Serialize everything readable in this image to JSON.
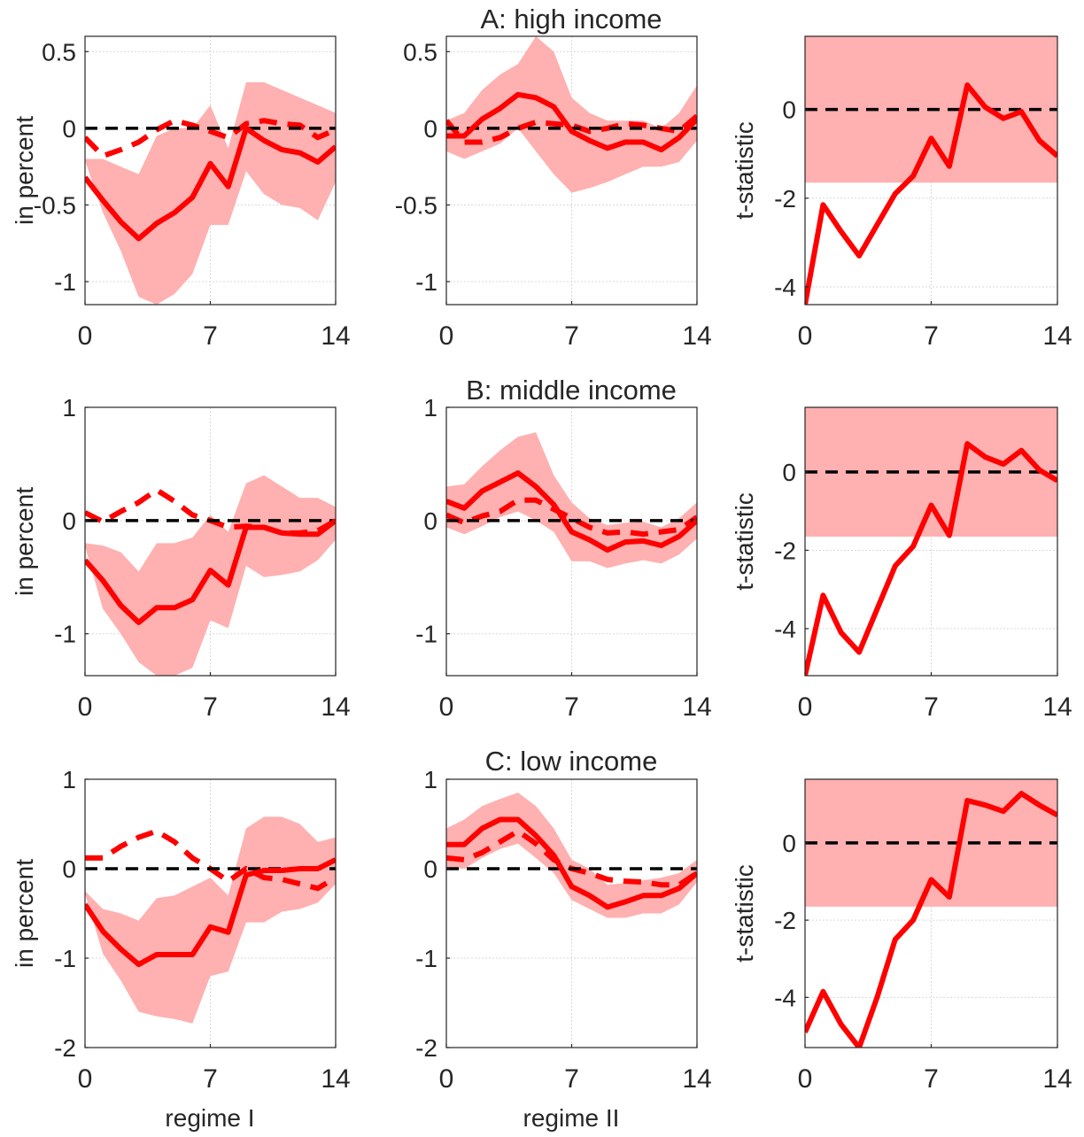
{
  "colors": {
    "line": "#ff0000",
    "band": "#ffb0b0",
    "zero_line": "#000000",
    "grid": "#d9d9d9",
    "axis": "#262626"
  },
  "labels": {
    "row_titles": [
      "A: high income",
      "B: middle income",
      "C: low income"
    ],
    "col_xlabels": [
      "regime I",
      "regime II",
      ""
    ],
    "ylabel_percent": "in percent",
    "ylabel_tstat": "t-statistic"
  },
  "chart_data": [
    {
      "type": "line",
      "title": "A: high income",
      "panel": "A, regime I",
      "ylabel": "in percent",
      "xlim": [
        0,
        14
      ],
      "ylim": [
        -1.15,
        0.6
      ],
      "xticks": [
        0,
        7,
        14
      ],
      "yticks": [
        -1,
        -0.5,
        0,
        0.5
      ],
      "ytick_labels": [
        "-1",
        "-0.5",
        "0",
        "0.5"
      ],
      "grid": true,
      "x": [
        0,
        1,
        2,
        3,
        4,
        5,
        6,
        7,
        8,
        9,
        10,
        11,
        12,
        13,
        14
      ],
      "series": [
        {
          "style": "solid",
          "values": [
            -0.32,
            -0.47,
            -0.61,
            -0.72,
            -0.62,
            -0.55,
            -0.45,
            -0.23,
            -0.38,
            0.0,
            -0.08,
            -0.14,
            -0.16,
            -0.22,
            -0.12
          ]
        },
        {
          "style": "dashed",
          "values": [
            -0.06,
            -0.18,
            -0.14,
            -0.09,
            -0.01,
            0.05,
            0.02,
            -0.02,
            -0.06,
            0.03,
            0.05,
            0.03,
            0.02,
            -0.06,
            -0.01
          ]
        },
        {
          "style": "band",
          "lower": [
            -0.21,
            -0.55,
            -0.8,
            -1.1,
            -1.15,
            -1.08,
            -0.95,
            -0.63,
            -0.63,
            -0.28,
            -0.43,
            -0.5,
            -0.52,
            -0.6,
            -0.35
          ],
          "upper": [
            -0.2,
            -0.2,
            -0.25,
            -0.3,
            -0.05,
            0.0,
            0.0,
            0.15,
            -0.13,
            0.3,
            0.3,
            0.25,
            0.2,
            0.15,
            0.1
          ]
        }
      ]
    },
    {
      "type": "line",
      "title": "",
      "panel": "A, regime II",
      "ylabel": "",
      "xlim": [
        0,
        14
      ],
      "ylim": [
        -1.15,
        0.6
      ],
      "xticks": [
        0,
        7,
        14
      ],
      "yticks": [
        -1,
        -0.5,
        0,
        0.5
      ],
      "ytick_labels": [
        "-1",
        "-0.5",
        "0",
        "0.5"
      ],
      "grid": true,
      "x": [
        0,
        1,
        2,
        3,
        4,
        5,
        6,
        7,
        8,
        9,
        10,
        11,
        12,
        13,
        14
      ],
      "series": [
        {
          "style": "solid",
          "values": [
            -0.05,
            -0.05,
            0.06,
            0.13,
            0.22,
            0.2,
            0.14,
            -0.02,
            -0.08,
            -0.13,
            -0.09,
            -0.09,
            -0.14,
            -0.06,
            0.06
          ]
        },
        {
          "style": "dashed",
          "values": [
            0.05,
            -0.09,
            -0.09,
            -0.06,
            0.0,
            0.04,
            0.03,
            0.02,
            -0.02,
            0.0,
            0.03,
            0.02,
            0.0,
            -0.02,
            0.08
          ]
        },
        {
          "style": "band",
          "lower": [
            -0.15,
            -0.2,
            -0.15,
            -0.1,
            0.0,
            -0.15,
            -0.3,
            -0.42,
            -0.39,
            -0.35,
            -0.3,
            -0.25,
            -0.25,
            -0.22,
            -0.08
          ],
          "upper": [
            0.05,
            0.1,
            0.25,
            0.35,
            0.42,
            0.6,
            0.5,
            0.2,
            0.1,
            0.05,
            0.05,
            0.05,
            0.0,
            0.1,
            0.28
          ]
        }
      ]
    },
    {
      "type": "line",
      "title": "",
      "panel": "A, t-statistic",
      "ylabel": "t-statistic",
      "xlim": [
        0,
        14
      ],
      "ylim": [
        -4.4,
        1.65
      ],
      "xticks": [
        0,
        7,
        14
      ],
      "yticks": [
        -4,
        -2,
        0
      ],
      "ytick_labels": [
        "-4",
        "-2",
        "0"
      ],
      "grid": true,
      "x": [
        0,
        1,
        2,
        3,
        4,
        5,
        6,
        7,
        8,
        9,
        10,
        11,
        12,
        13,
        14
      ],
      "series": [
        {
          "style": "solid",
          "values": [
            -4.4,
            -2.15,
            -2.75,
            -3.3,
            -2.6,
            -1.9,
            -1.5,
            -0.65,
            -1.28,
            0.55,
            0.05,
            -0.2,
            -0.05,
            -0.7,
            -1.05
          ]
        },
        {
          "style": "band",
          "lower": [
            -1.65,
            -1.65,
            -1.65,
            -1.65,
            -1.65,
            -1.65,
            -1.65,
            -1.65,
            -1.65,
            -1.65,
            -1.65,
            -1.65,
            -1.65,
            -1.65,
            -1.65
          ],
          "upper": [
            1.65,
            1.65,
            1.65,
            1.65,
            1.65,
            1.65,
            1.65,
            1.65,
            1.65,
            1.65,
            1.65,
            1.65,
            1.65,
            1.65,
            1.65
          ]
        }
      ]
    },
    {
      "type": "line",
      "title": "B: middle income",
      "panel": "B, regime I",
      "ylabel": "in percent",
      "xlim": [
        0,
        14
      ],
      "ylim": [
        -1.37,
        1.0
      ],
      "xticks": [
        0,
        7,
        14
      ],
      "yticks": [
        -1,
        0,
        1
      ],
      "ytick_labels": [
        "-1",
        "0",
        "1"
      ],
      "grid": true,
      "x": [
        0,
        1,
        2,
        3,
        4,
        5,
        6,
        7,
        8,
        9,
        10,
        11,
        12,
        13,
        14
      ],
      "series": [
        {
          "style": "solid",
          "values": [
            -0.35,
            -0.53,
            -0.75,
            -0.9,
            -0.77,
            -0.77,
            -0.7,
            -0.44,
            -0.57,
            -0.06,
            -0.06,
            -0.11,
            -0.12,
            -0.12,
            0.0
          ]
        },
        {
          "style": "dashed",
          "values": [
            0.07,
            -0.01,
            0.08,
            0.16,
            0.27,
            0.17,
            0.05,
            0.0,
            -0.06,
            -0.05,
            -0.06,
            -0.11,
            -0.11,
            -0.09,
            0.0
          ]
        },
        {
          "style": "band",
          "lower": [
            -0.23,
            -0.78,
            -1.0,
            -1.25,
            -1.37,
            -1.37,
            -1.3,
            -0.88,
            -0.95,
            -0.4,
            -0.5,
            -0.48,
            -0.45,
            -0.35,
            -0.17
          ],
          "upper": [
            -0.2,
            -0.22,
            -0.28,
            -0.45,
            -0.2,
            -0.2,
            -0.15,
            0.05,
            -0.1,
            0.33,
            0.4,
            0.3,
            0.2,
            0.2,
            0.12
          ]
        }
      ]
    },
    {
      "type": "line",
      "title": "",
      "panel": "B, regime II",
      "ylabel": "",
      "xlim": [
        0,
        14
      ],
      "ylim": [
        -1.37,
        1.0
      ],
      "xticks": [
        0,
        7,
        14
      ],
      "yticks": [
        -1,
        0,
        1
      ],
      "ytick_labels": [
        "-1",
        "0",
        "1"
      ],
      "grid": true,
      "x": [
        0,
        1,
        2,
        3,
        4,
        5,
        6,
        7,
        8,
        9,
        10,
        11,
        12,
        13,
        14
      ],
      "series": [
        {
          "style": "solid",
          "values": [
            0.17,
            0.11,
            0.26,
            0.34,
            0.42,
            0.3,
            0.14,
            -0.1,
            -0.17,
            -0.26,
            -0.19,
            -0.18,
            -0.22,
            -0.14,
            0.0
          ]
        },
        {
          "style": "dashed",
          "values": [
            0.05,
            -0.02,
            0.04,
            0.08,
            0.18,
            0.18,
            0.1,
            0.02,
            -0.06,
            -0.11,
            -0.1,
            -0.12,
            -0.1,
            -0.08,
            0.03
          ]
        },
        {
          "style": "band",
          "lower": [
            -0.06,
            -0.12,
            -0.05,
            0.03,
            0.08,
            0.0,
            -0.1,
            -0.36,
            -0.36,
            -0.42,
            -0.38,
            -0.35,
            -0.38,
            -0.3,
            -0.16
          ],
          "upper": [
            0.3,
            0.32,
            0.48,
            0.62,
            0.74,
            0.78,
            0.4,
            0.16,
            0.02,
            -0.04,
            -0.02,
            -0.01,
            -0.06,
            0.02,
            0.16
          ]
        }
      ]
    },
    {
      "type": "line",
      "title": "",
      "panel": "B, t-statistic",
      "ylabel": "t-statistic",
      "xlim": [
        0,
        14
      ],
      "ylim": [
        -5.2,
        1.65
      ],
      "xticks": [
        0,
        7,
        14
      ],
      "yticks": [
        -4,
        -2,
        0
      ],
      "ytick_labels": [
        "-4",
        "-2",
        "0"
      ],
      "grid": true,
      "x": [
        0,
        1,
        2,
        3,
        4,
        5,
        6,
        7,
        8,
        9,
        10,
        11,
        12,
        13,
        14
      ],
      "series": [
        {
          "style": "solid",
          "values": [
            -5.2,
            -3.15,
            -4.1,
            -4.6,
            -3.5,
            -2.4,
            -1.9,
            -0.85,
            -1.62,
            0.72,
            0.38,
            0.2,
            0.55,
            0.05,
            -0.22
          ]
        },
        {
          "style": "band",
          "lower": [
            -1.65,
            -1.65,
            -1.65,
            -1.65,
            -1.65,
            -1.65,
            -1.65,
            -1.65,
            -1.65,
            -1.65,
            -1.65,
            -1.65,
            -1.65,
            -1.65,
            -1.65
          ],
          "upper": [
            1.65,
            1.65,
            1.65,
            1.65,
            1.65,
            1.65,
            1.65,
            1.65,
            1.65,
            1.65,
            1.65,
            1.65,
            1.65,
            1.65,
            1.65
          ]
        }
      ]
    },
    {
      "type": "line",
      "title": "C: low income",
      "panel": "C, regime I",
      "ylabel": "in percent",
      "xlim": [
        0,
        14
      ],
      "ylim": [
        -2.0,
        1.0
      ],
      "xticks": [
        0,
        7,
        14
      ],
      "yticks": [
        -2,
        -1,
        0,
        1
      ],
      "ytick_labels": [
        "-2",
        "-1",
        "0",
        "1"
      ],
      "grid": true,
      "x": [
        0,
        1,
        2,
        3,
        4,
        5,
        6,
        7,
        8,
        9,
        10,
        11,
        12,
        13,
        14
      ],
      "series": [
        {
          "style": "solid",
          "values": [
            -0.4,
            -0.7,
            -0.9,
            -1.07,
            -0.96,
            -0.96,
            -0.96,
            -0.65,
            -0.71,
            -0.07,
            -0.02,
            -0.02,
            0.0,
            0.0,
            0.1
          ]
        },
        {
          "style": "dashed",
          "values": [
            0.12,
            0.12,
            0.25,
            0.35,
            0.42,
            0.3,
            0.12,
            0.0,
            -0.14,
            0.0,
            -0.1,
            -0.12,
            -0.17,
            -0.22,
            -0.1
          ]
        },
        {
          "style": "band",
          "lower": [
            -0.28,
            -0.95,
            -1.25,
            -1.6,
            -1.65,
            -1.68,
            -1.73,
            -1.2,
            -1.15,
            -0.6,
            -0.6,
            -0.48,
            -0.45,
            -0.38,
            -0.17
          ],
          "upper": [
            -0.25,
            -0.45,
            -0.5,
            -0.58,
            -0.33,
            -0.3,
            -0.2,
            -0.1,
            -0.3,
            0.45,
            0.58,
            0.58,
            0.5,
            0.3,
            0.35
          ]
        }
      ]
    },
    {
      "type": "line",
      "title": "",
      "panel": "C, regime II",
      "ylabel": "",
      "xlim": [
        0,
        14
      ],
      "ylim": [
        -2.0,
        1.0
      ],
      "xticks": [
        0,
        7,
        14
      ],
      "yticks": [
        -2,
        -1,
        0,
        1
      ],
      "ytick_labels": [
        "-2",
        "-1",
        "0",
        "1"
      ],
      "grid": true,
      "x": [
        0,
        1,
        2,
        3,
        4,
        5,
        6,
        7,
        8,
        9,
        10,
        11,
        12,
        13,
        14
      ],
      "series": [
        {
          "style": "solid",
          "values": [
            0.27,
            0.27,
            0.45,
            0.55,
            0.55,
            0.37,
            0.15,
            -0.2,
            -0.3,
            -0.43,
            -0.37,
            -0.3,
            -0.3,
            -0.22,
            -0.05
          ]
        },
        {
          "style": "dashed",
          "values": [
            0.12,
            0.1,
            0.18,
            0.3,
            0.42,
            0.28,
            0.1,
            0.0,
            -0.05,
            -0.12,
            -0.14,
            -0.15,
            -0.18,
            -0.18,
            -0.05
          ]
        },
        {
          "style": "band",
          "lower": [
            0.02,
            0.0,
            0.12,
            0.22,
            0.28,
            0.12,
            -0.05,
            -0.35,
            -0.45,
            -0.55,
            -0.55,
            -0.5,
            -0.5,
            -0.4,
            -0.15
          ],
          "upper": [
            0.45,
            0.55,
            0.7,
            0.78,
            0.85,
            0.7,
            0.45,
            0.1,
            0.0,
            -0.18,
            -0.16,
            -0.13,
            -0.1,
            -0.05,
            0.1
          ]
        }
      ]
    },
    {
      "type": "line",
      "title": "",
      "panel": "C, t-statistic",
      "ylabel": "t-statistic",
      "xlim": [
        0,
        14
      ],
      "ylim": [
        -5.3,
        1.65
      ],
      "xticks": [
        0,
        7,
        14
      ],
      "yticks": [
        -4,
        -2,
        0
      ],
      "ytick_labels": [
        "-4",
        "-2",
        "0"
      ],
      "grid": true,
      "x": [
        0,
        1,
        2,
        3,
        4,
        5,
        6,
        7,
        8,
        9,
        10,
        11,
        12,
        13,
        14
      ],
      "series": [
        {
          "style": "solid",
          "values": [
            -4.9,
            -3.85,
            -4.7,
            -5.3,
            -4.0,
            -2.5,
            -2.0,
            -0.95,
            -1.4,
            1.1,
            0.98,
            0.82,
            1.28,
            0.98,
            0.72
          ]
        },
        {
          "style": "band",
          "lower": [
            -1.65,
            -1.65,
            -1.65,
            -1.65,
            -1.65,
            -1.65,
            -1.65,
            -1.65,
            -1.65,
            -1.65,
            -1.65,
            -1.65,
            -1.65,
            -1.65,
            -1.65
          ],
          "upper": [
            1.65,
            1.65,
            1.65,
            1.65,
            1.65,
            1.65,
            1.65,
            1.65,
            1.65,
            1.65,
            1.65,
            1.65,
            1.65,
            1.65,
            1.65
          ]
        }
      ]
    }
  ]
}
